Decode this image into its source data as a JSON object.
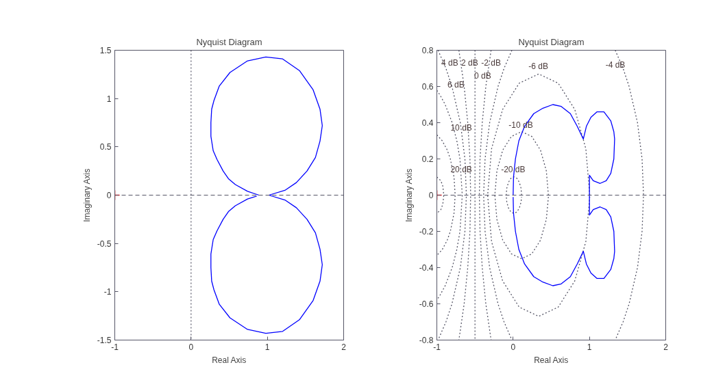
{
  "chart_data": [
    {
      "type": "line",
      "title": "Nyquist Diagram",
      "xlabel": "Real Axis",
      "ylabel": "Imaginary Axis",
      "xlim": [
        -1,
        2
      ],
      "ylim": [
        -1.5,
        1.5
      ],
      "xticks": [
        -1,
        0,
        1,
        2
      ],
      "yticks": [
        -1.5,
        -1,
        -0.5,
        0,
        0.5,
        1,
        1.5
      ],
      "grid": false,
      "ref_lines": [
        {
          "axis": "x",
          "value": 0,
          "line_style": "dotted",
          "color": "#555566"
        },
        {
          "axis": "y",
          "value": 0,
          "line_style": "dashed",
          "color": "#555566"
        }
      ],
      "series": [
        {
          "color": "#0000ff",
          "x": [
            0.89,
            0.74,
            0.58,
            0.49,
            0.42,
            0.34,
            0.29,
            0.26,
            0.26,
            0.27,
            0.3,
            0.37,
            0.51,
            0.74,
            0.98,
            1.2,
            1.42,
            1.6,
            1.69,
            1.72,
            1.69,
            1.63,
            1.52,
            1.38,
            1.23,
            1.02,
            1.23,
            1.38,
            1.52,
            1.63,
            1.69,
            1.72,
            1.69,
            1.6,
            1.42,
            1.2,
            0.98,
            0.74,
            0.51,
            0.37,
            0.3,
            0.27,
            0.26,
            0.26,
            0.29,
            0.34,
            0.42,
            0.49,
            0.58,
            0.74,
            0.86
          ],
          "values": [
            0,
            0.04,
            0.11,
            0.17,
            0.25,
            0.37,
            0.46,
            0.61,
            0.75,
            0.89,
            0.98,
            1.13,
            1.27,
            1.39,
            1.43,
            1.41,
            1.29,
            1.09,
            0.89,
            0.72,
            0.56,
            0.39,
            0.25,
            0.13,
            0.05,
            0,
            -0.05,
            -0.13,
            -0.25,
            -0.39,
            -0.56,
            -0.72,
            -0.89,
            -1.09,
            -1.29,
            -1.41,
            -1.43,
            -1.39,
            -1.27,
            -1.13,
            -0.98,
            -0.89,
            -0.75,
            -0.61,
            -0.46,
            -0.37,
            -0.25,
            -0.17,
            -0.11,
            -0.04,
            -0.01
          ]
        },
        {
          "type": "scatter",
          "marker": "cross",
          "color": "#ff0000",
          "x": [
            -1
          ],
          "values": [
            0
          ]
        }
      ]
    },
    {
      "type": "line",
      "title": "Nyquist Diagram",
      "xlabel": "Real Axis",
      "ylabel": "Imaginary Axis",
      "xlim": [
        -1,
        2
      ],
      "ylim": [
        -0.8,
        0.8
      ],
      "xticks": [
        -1,
        0,
        1,
        2
      ],
      "yticks": [
        -0.8,
        -0.6,
        -0.4,
        -0.2,
        0,
        0.2,
        0.4,
        0.6,
        0.8
      ],
      "grid": false,
      "ref_lines": [
        {
          "axis": "y",
          "value": 0,
          "line_style": "dashed",
          "color": "#555566"
        }
      ],
      "annotations": [
        "20 dB",
        "10 dB",
        "6 dB",
        "4 dB",
        "2 dB",
        "0 dB",
        "-2 dB",
        "-4 dB",
        "-6 dB",
        "-10 dB",
        "-20 dB"
      ],
      "series": [
        {
          "line_style": "dotted",
          "color": "#555566",
          "x": [
            -1,
            -0.948,
            -0.922,
            -0.909,
            -0.922,
            -0.948,
            -1
          ],
          "values": [
            0.1,
            0.08,
            0.05,
            0,
            -0.05,
            -0.08,
            -0.1
          ]
        },
        {
          "line_style": "dotted",
          "color": "#555566",
          "x": [
            -1,
            -0.929,
            -0.865,
            -0.823,
            -0.775,
            -0.76,
            -0.775,
            -0.823,
            -0.865,
            -0.929,
            -1
          ],
          "values": [
            0.333,
            0.3,
            0.25,
            0.2,
            0.1,
            0,
            -0.1,
            -0.2,
            -0.25,
            -0.3,
            -0.333
          ]
        },
        {
          "line_style": "dotted",
          "color": "#555566",
          "x": [
            -1,
            -0.955,
            -0.891,
            -0.799,
            -0.738,
            -0.697,
            -0.667,
            -0.697,
            -0.738,
            -0.799,
            -0.891,
            -0.955,
            -1
          ],
          "values": [
            0.579,
            0.55,
            0.5,
            0.4,
            0.3,
            0.2,
            0,
            -0.2,
            -0.3,
            -0.4,
            -0.5,
            -0.55,
            -0.579
          ]
        },
        {
          "line_style": "dotted",
          "color": "#555566",
          "x": [
            -0.984,
            -0.881,
            -0.802,
            -0.692,
            -0.632,
            -0.613,
            -0.632,
            -0.692,
            -0.802,
            -0.881,
            -0.984
          ],
          "values": [
            0.8,
            0.7,
            0.6,
            0.4,
            0.2,
            0,
            -0.2,
            -0.4,
            -0.6,
            -0.7,
            -0.8
          ]
        },
        {
          "line_style": "dotted",
          "color": "#555566",
          "x": [
            -0.711,
            -0.642,
            -0.595,
            -0.566,
            -0.557,
            -0.566,
            -0.595,
            -0.642,
            -0.711
          ],
          "values": [
            0.8,
            0.6,
            0.4,
            0.2,
            0,
            -0.2,
            -0.4,
            -0.6,
            -0.8
          ]
        },
        {
          "line_style": "dotted",
          "color": "#555566",
          "x": [
            -0.5,
            -0.5
          ],
          "values": [
            0.8,
            -0.8
          ]
        },
        {
          "line_style": "dotted",
          "color": "#555566",
          "x": [
            -0.289,
            -0.358,
            -0.405,
            -0.434,
            -0.443,
            -0.434,
            -0.405,
            -0.358,
            -0.289
          ],
          "values": [
            0.8,
            0.6,
            0.4,
            0.2,
            0,
            -0.2,
            -0.4,
            -0.6,
            -0.8
          ]
        },
        {
          "line_style": "dotted",
          "color": "#555566",
          "x": [
            -0.016,
            -0.119,
            -0.198,
            -0.308,
            -0.368,
            -0.387,
            -0.368,
            -0.308,
            -0.198,
            -0.119,
            -0.016
          ],
          "values": [
            0.8,
            0.7,
            0.6,
            0.4,
            0.2,
            0,
            -0.2,
            -0.4,
            -0.6,
            -0.7,
            -0.8
          ]
        },
        {
          "line_style": "dotted",
          "color": "#555566",
          "x": [
            1.338,
            1.441,
            1.52,
            1.63,
            1.69,
            1.709,
            1.69,
            1.63,
            1.52,
            1.441,
            1.338
          ],
          "values": [
            0.8,
            0.7,
            0.6,
            0.4,
            0.2,
            0,
            -0.2,
            -0.4,
            -0.6,
            -0.7,
            -0.8
          ]
        },
        {
          "line_style": "dotted",
          "color": "#555566",
          "x": [
            1.004,
            0.953,
            0.808,
            0.591,
            0.335,
            0.079,
            -0.138,
            -0.283,
            -0.334,
            -0.283,
            -0.138,
            0.079,
            0.335,
            0.591,
            0.808,
            0.953,
            1.004
          ],
          "values": [
            0,
            0.256,
            0.473,
            0.618,
            0.669,
            0.618,
            0.473,
            0.256,
            0,
            -0.256,
            -0.473,
            -0.618,
            -0.669,
            -0.618,
            -0.473,
            -0.256,
            -0.01
          ]
        },
        {
          "line_style": "dotted",
          "color": "#555566",
          "x": [
            0.462,
            0.435,
            0.359,
            0.245,
            0.111,
            -0.023,
            -0.137,
            -0.213,
            -0.24,
            -0.213,
            -0.137,
            -0.023,
            0.111,
            0.245,
            0.359,
            0.435,
            0.462
          ],
          "values": [
            0,
            0.134,
            0.248,
            0.324,
            0.351,
            0.324,
            0.248,
            0.134,
            0,
            -0.134,
            -0.248,
            -0.324,
            -0.351,
            -0.324,
            -0.248,
            -0.134,
            -0.01
          ]
        },
        {
          "line_style": "dotted",
          "color": "#555566",
          "x": [
            0.111,
            0.103,
            0.081,
            0.049,
            0.01,
            -0.029,
            -0.061,
            -0.083,
            -0.091,
            -0.083,
            -0.061,
            -0.029,
            0.01,
            0.049,
            0.081,
            0.103,
            0.111
          ],
          "values": [
            0,
            0.039,
            0.071,
            0.093,
            0.101,
            0.093,
            0.071,
            0.039,
            0,
            -0.039,
            -0.071,
            -0.093,
            -0.101,
            -0.093,
            -0.071,
            -0.039,
            -0.01
          ]
        },
        {
          "color": "#0000ff",
          "x": [
            0,
            0.005,
            0.03,
            0.075,
            0.15,
            0.27,
            0.39,
            0.52,
            0.63,
            0.75,
            0.84,
            0.92,
            0.96,
            1.02,
            1.1,
            1.19,
            1.28,
            1.32,
            1.33,
            1.32,
            1.28,
            1.22,
            1.14,
            1.05,
            1.0,
            1.0,
            1.0,
            1.05,
            1.14,
            1.22,
            1.28,
            1.32,
            1.33,
            1.32,
            1.28,
            1.19,
            1.1,
            1.02,
            0.96,
            0.92,
            0.84,
            0.75,
            0.63,
            0.52,
            0.39,
            0.27,
            0.15,
            0.075,
            0.03,
            0.005,
            0
          ],
          "values": [
            0,
            0.1,
            0.2,
            0.3,
            0.38,
            0.45,
            0.48,
            0.5,
            0.49,
            0.45,
            0.38,
            0.31,
            0.38,
            0.43,
            0.46,
            0.46,
            0.41,
            0.35,
            0.31,
            0.2,
            0.12,
            0.08,
            0.065,
            0.08,
            0.11,
            0,
            -0.11,
            -0.08,
            -0.065,
            -0.08,
            -0.12,
            -0.2,
            -0.31,
            -0.35,
            -0.41,
            -0.46,
            -0.46,
            -0.43,
            -0.38,
            -0.31,
            -0.38,
            -0.45,
            -0.49,
            -0.5,
            -0.48,
            -0.45,
            -0.38,
            -0.3,
            -0.2,
            -0.1,
            -0.01
          ]
        },
        {
          "type": "scatter",
          "marker": "cross",
          "color": "#ff0000",
          "x": [
            -1
          ],
          "values": [
            0
          ]
        }
      ]
    }
  ]
}
